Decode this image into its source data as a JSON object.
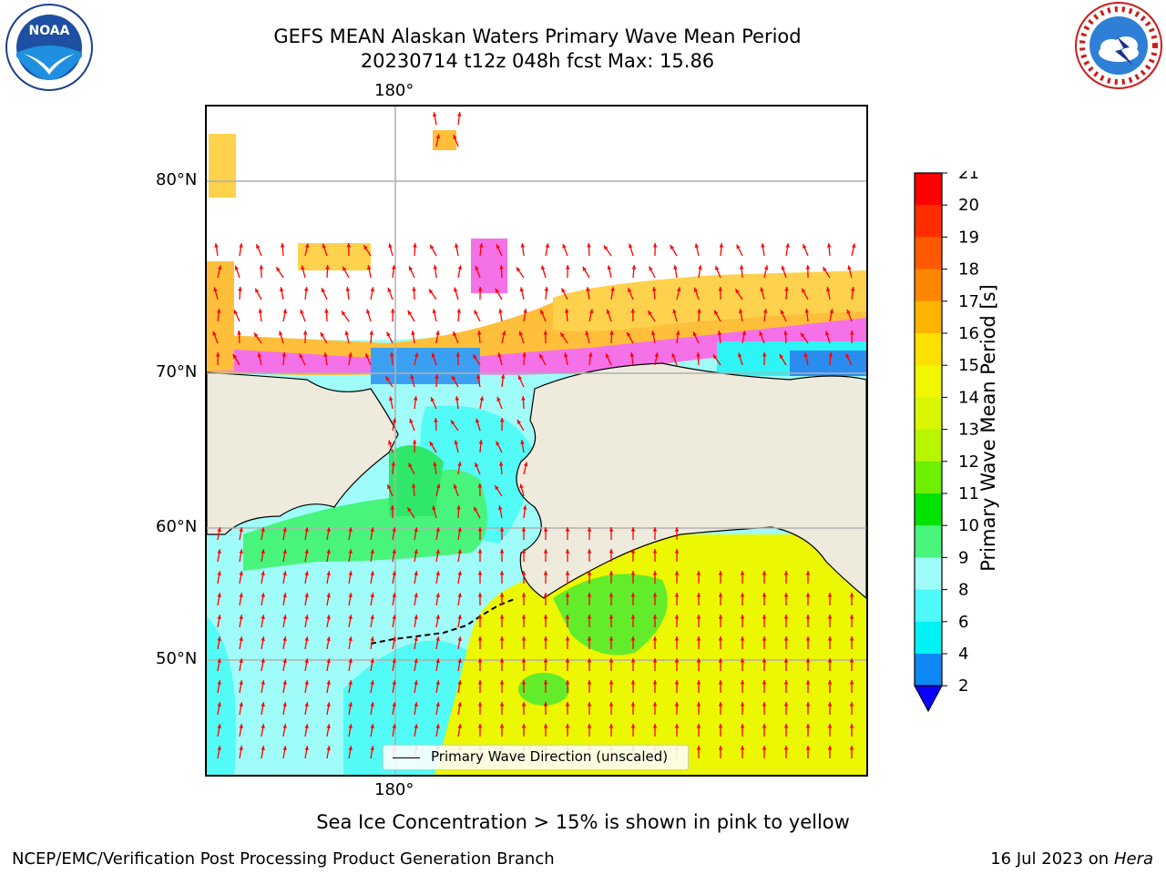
{
  "title": {
    "line1": "GEFS MEAN Alaskan Waters Primary Wave Mean Period",
    "line2": "20230714 t12z 048h fcst   Max: 15.86"
  },
  "logos": {
    "left": {
      "text": "NOAA",
      "icon": "noaa-logo"
    },
    "right": {
      "text": "NATIONAL WEATHER SERVICE",
      "icon": "nws-logo"
    }
  },
  "map": {
    "lon_labels": {
      "top": "180°",
      "bottom": "180°"
    },
    "lat_labels": [
      "80°N",
      "70°N",
      "60°N",
      "50°N"
    ],
    "legend_label": "Primary Wave Direction (unscaled)",
    "colors": {
      "land": "#efebdc",
      "arrow": "#ff0000",
      "period_low": "#9ffcf8",
      "period_cyan": "#52fbf5",
      "period_green": "#2fe86a",
      "period_yellow": "#ecf702"
    }
  },
  "colorbar": {
    "title": "Primary Wave Mean Period [s]",
    "ticks": [
      "21",
      "20",
      "19",
      "18",
      "17",
      "16",
      "15",
      "14",
      "13",
      "12",
      "11",
      "10",
      "9",
      "8",
      "6",
      "4",
      "2"
    ],
    "colors": [
      "#ff0000",
      "#ff2d00",
      "#ff5a00",
      "#ff8700",
      "#ffb400",
      "#ffe100",
      "#f1f700",
      "#d9f700",
      "#b8f500",
      "#6cf000",
      "#00e300",
      "#48f47c",
      "#9efcf8",
      "#4ff9f9",
      "#00f2f5",
      "#0d88f5"
    ],
    "extend_color": "#0a00ff"
  },
  "annotation": "Sea Ice Concentration > 15% is shown in pink to yellow",
  "footer": {
    "left": "NCEP/EMC/Verification Post Processing Product Generation Branch",
    "date": "16 Jul 2023 on ",
    "host": "Hera"
  }
}
